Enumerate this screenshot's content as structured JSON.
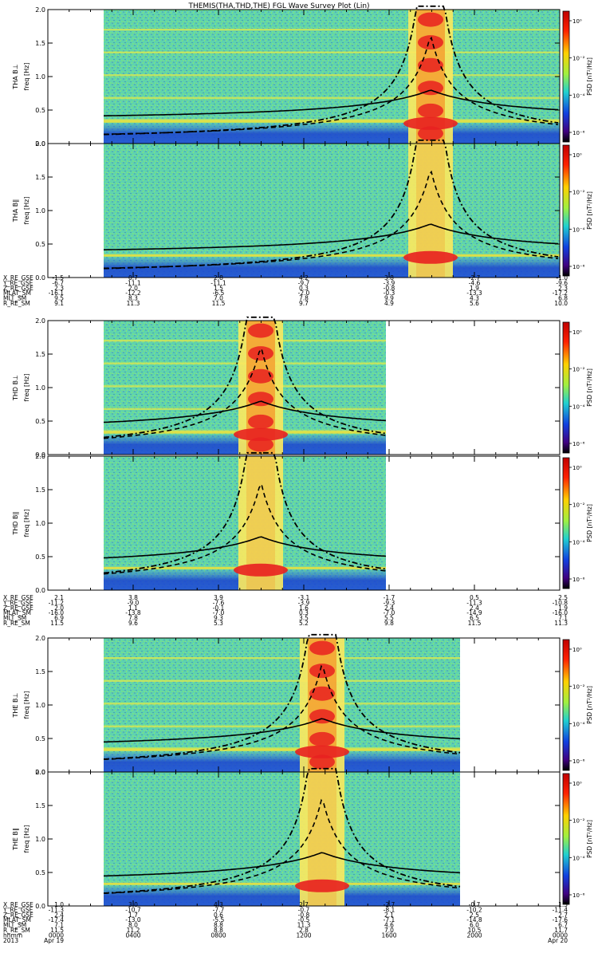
{
  "title": "THEMIS(THA,THD,THE) FGL Wave Survey Plot (Lin)",
  "colors": {
    "spec_bg": "#7ee07a",
    "spec_noise_a": "#2fa0e0",
    "spec_noise_b": "#4fd0c8",
    "low_band": "#1535c8",
    "core_yellow": "#f8e860",
    "core_red": "#e82020",
    "line": "#000000"
  },
  "colorbar_ticks": [
    "10⁰",
    "10⁻²",
    "10⁻⁴",
    "10⁻⁶"
  ],
  "colorbar_label": "PSD [nT²/Hz]",
  "chart_data": {
    "type": "heatmap",
    "yaxis": {
      "ticks": [
        "2.0",
        "1.5",
        "1.0",
        "0.5",
        "0.0"
      ],
      "ylim": [
        0,
        2.0
      ]
    },
    "panels": [
      {
        "probe": "THA",
        "comp": "B⊥",
        "label1": "THA B⊥",
        "label2": "freq [Hz]",
        "t_start": 130,
        "t_end": 702,
        "core_center": 540
      },
      {
        "probe": "THA",
        "comp": "B∥",
        "label1": "THA B∥",
        "label2": "freq [Hz]",
        "t_start": 130,
        "t_end": 702,
        "core_center": 540
      },
      {
        "probe": "THD",
        "comp": "B⊥",
        "label1": "THD B⊥",
        "label2": "freq [Hz]",
        "t_start": 130,
        "t_end": 484,
        "core_center": 327
      },
      {
        "probe": "THD",
        "comp": "B∥",
        "label1": "THD B∥",
        "label2": "freq [Hz]",
        "t_start": 130,
        "t_end": 484,
        "core_center": 327
      },
      {
        "probe": "THE",
        "comp": "B⊥",
        "label1": "THE B⊥",
        "label2": "freq [Hz]",
        "t_start": 130,
        "t_end": 577,
        "core_center": 404
      },
      {
        "probe": "THE",
        "comp": "B∥",
        "label1": "THE B∥",
        "label2": "freq [Hz]",
        "t_start": 130,
        "t_end": 577,
        "core_center": 404
      }
    ],
    "ephemeris": [
      {
        "labels": [
          "X_RE_GSE",
          "Y_RE_GSE",
          "Z_RE_GSE",
          "MLAT_SM",
          "MLT_SM",
          "R_RE_SM"
        ],
        "columns": [
          [
            "-1.5",
            "-6.7",
            "2.3",
            "-16.1",
            "9.5",
            "9.1"
          ],
          [
            "0.7",
            "-11.1",
            "2.0",
            "-12.2",
            "8.3",
            "11.3"
          ],
          [
            "2.8",
            "-11.1",
            "1.5",
            "-6.5",
            "7.0",
            "11.5"
          ],
          [
            "4.2",
            "-9.7",
            "0.3",
            "-2.0",
            "7.8",
            "9.7"
          ],
          [
            "3.8",
            "-3.9",
            "-0.8",
            "-0.3",
            "9.9",
            "4.9"
          ],
          [
            "-2.7",
            "-4.6",
            "1.9",
            "-13.3",
            "4.3",
            "5.6"
          ],
          [
            "-1.0",
            "-9.6",
            "2.3",
            "-17.2",
            "6.8",
            "10.0"
          ]
        ]
      },
      {
        "labels": [
          "X_RE_GSE",
          "Y_RE_GSE",
          "Z_RE_GSE",
          "MLAT_SM",
          "MLT_SM",
          "R_RE_SM"
        ],
        "columns": [
          [
            "2.1",
            "-11.2",
            "2.0",
            "-16.0",
            "6.9",
            "11.5"
          ],
          [
            "3.8",
            "-9.0",
            "1.1",
            "-13.8",
            "7.8",
            "9.6"
          ],
          [
            "3.9",
            "-7.6",
            "-0.1",
            "-7.0",
            "9.3",
            "5.3"
          ],
          [
            "-3.1",
            "-3.9",
            "1.6",
            "0.3",
            "3.5",
            "5.2"
          ],
          [
            "-1.7",
            "-9.3",
            "2.4",
            "-7.0",
            "5.5",
            "9.8"
          ],
          [
            "0.5",
            "-11.3",
            "2.4",
            "-14.9",
            "6.5",
            "11.5"
          ],
          [
            "2.5",
            "-10.8",
            "1.9",
            "-16.0",
            "7.1",
            "11.3"
          ]
        ]
      },
      {
        "labels": [
          "X_RE_GSE",
          "Y_RE_GSE",
          "Z_RE_GSE",
          "MLAT_SM",
          "MLT_SM",
          "R_RE_SM",
          "hhmm",
          "2013"
        ],
        "columns": [
          [
            "1.0",
            "-11.3",
            "2.4",
            "-17.4",
            "7.1",
            "11.5",
            "0000",
            "Apr 19"
          ],
          [
            "3.0",
            "-10.7",
            "1.7",
            "-13.0",
            "8.0",
            "11.2",
            "0400",
            ""
          ],
          [
            "4.3",
            "-7.7",
            "0.6",
            "-5.5",
            "8.8",
            "8.8",
            "0800",
            ""
          ],
          [
            "2.7",
            "-0.7",
            "-0.8",
            "-0.5",
            "11.3",
            "2.8",
            "1200",
            ""
          ],
          [
            "-2.7",
            "-8.1",
            "2.1",
            "-7.1",
            "4.6",
            "7.0",
            "1600",
            ""
          ],
          [
            "-0.7",
            "-10.2",
            "2.5",
            "-14.8",
            "6.0",
            "10.5",
            "2000",
            ""
          ],
          [
            "1.5",
            "-11.4",
            "2.7",
            "-17.6",
            "6.7",
            "11.7",
            "0000",
            "Apr 20"
          ]
        ]
      }
    ]
  }
}
